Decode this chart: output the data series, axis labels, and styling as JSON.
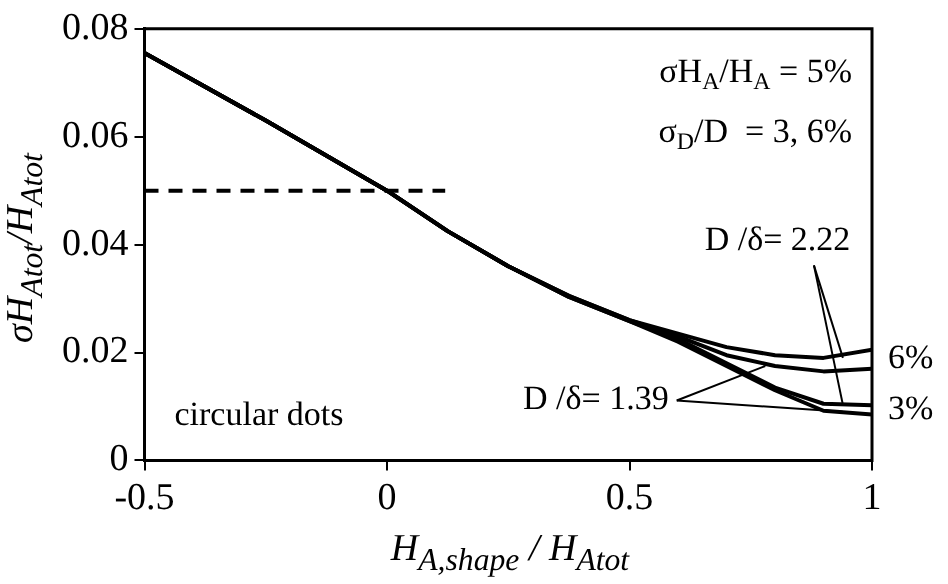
{
  "chart_data": {
    "type": "line",
    "xlabel": "H$_{A,shape}$ / H$_{Atot}$",
    "ylabel": "σH$_{Atot}$/H$_{Atot}$",
    "xlim": [
      -0.5,
      1
    ],
    "xticks": [
      -0.5,
      0,
      0.5,
      1
    ],
    "ylim": [
      0,
      0.08
    ],
    "yticks": [
      0,
      0.02,
      0.04,
      0.06,
      0.08
    ],
    "grid": false,
    "legend": false,
    "marker": "none",
    "x": [
      -0.5,
      -0.25,
      0,
      0.125,
      0.25,
      0.375,
      0.5,
      0.6,
      0.7,
      0.8,
      0.9,
      1
    ],
    "series": [
      {
        "color": "#000000",
        "values": [
          0.0755,
          0.063,
          0.05,
          0.0425,
          0.036,
          0.0305,
          0.026,
          0.0235,
          0.021,
          0.0195,
          0.019,
          0.0205
        ]
      },
      {
        "color": "#000000",
        "values": [
          0.0755,
          0.063,
          0.05,
          0.0425,
          0.036,
          0.0305,
          0.026,
          0.023,
          0.0195,
          0.0175,
          0.0165,
          0.017
        ]
      },
      {
        "color": "#000000",
        "values": [
          0.0755,
          0.063,
          0.05,
          0.0425,
          0.036,
          0.0303,
          0.0258,
          0.0225,
          0.018,
          0.0135,
          0.0105,
          0.0102
        ]
      },
      {
        "color": "#000000",
        "values": [
          0.0755,
          0.063,
          0.05,
          0.0425,
          0.036,
          0.0303,
          0.0258,
          0.022,
          0.0175,
          0.013,
          0.0092,
          0.0085
        ]
      },
      {
        "color": "#000000",
        "line_style": "dashed",
        "x": [
          -0.5,
          0.12
        ],
        "values": [
          0.05,
          0.05
        ]
      }
    ],
    "annotations": [
      "σH$_{A}$/H$_{A}$ = 5%",
      "σ$_{D}$/D  = 3, 6%",
      {
        "text": "D /δ= 2.22",
        "x": 0.94,
        "y": 0.019
      },
      {
        "text": "D /δ= 1.39",
        "x": 0.78,
        "y": 0.0175
      },
      "circular dots",
      "6%",
      "3%"
    ]
  }
}
